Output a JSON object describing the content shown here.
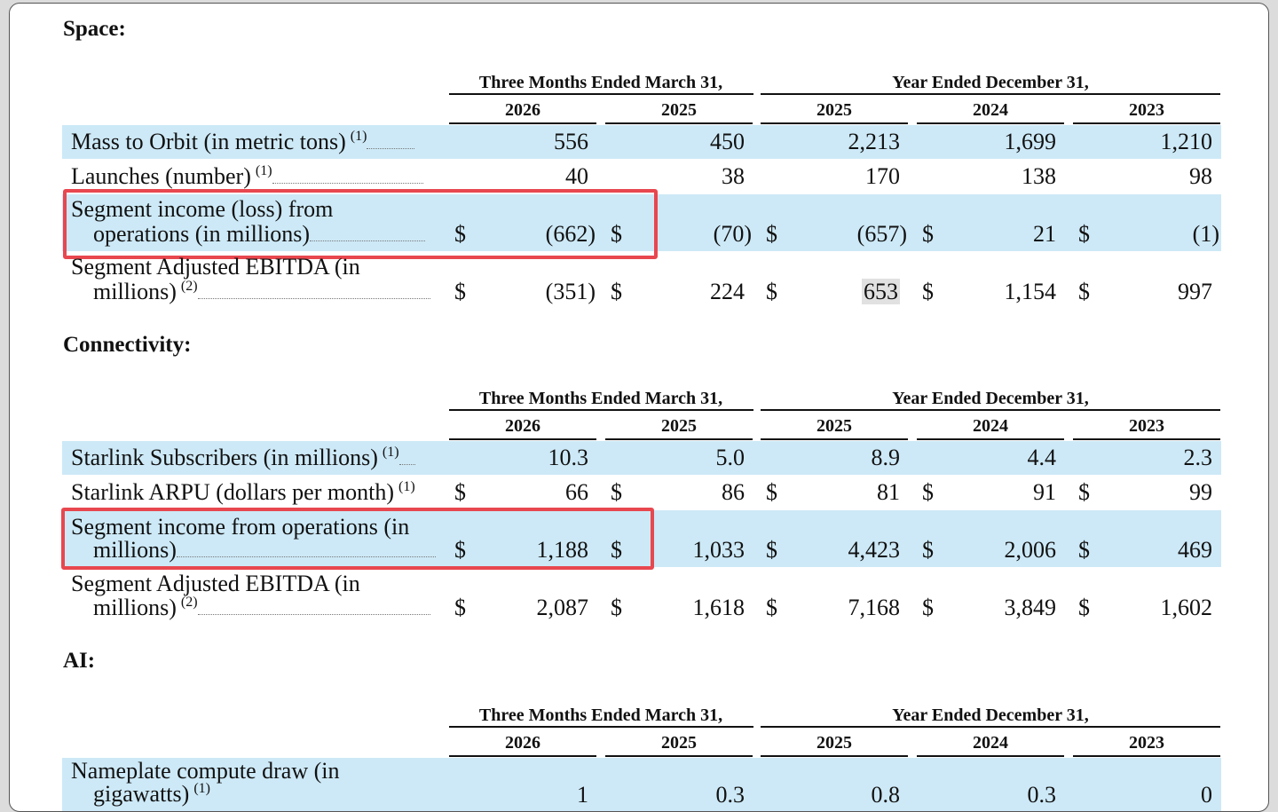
{
  "colors": {
    "row_highlight": "#cde9f7",
    "box_highlight": "#e8474f",
    "cell_highlight": "#e1e1e1"
  },
  "headers": {
    "group_quarter": "Three Months Ended March 31,",
    "group_year": "Year Ended December 31,",
    "years": [
      "2026",
      "2025",
      "2025",
      "2024",
      "2023"
    ]
  },
  "sections": [
    {
      "title": "Space:",
      "rows": [
        {
          "label1": "Mass to Orbit (in metric tons)",
          "label2": "",
          "fn": "(1)",
          "dollar": false,
          "values": [
            "556",
            "450",
            "2,213",
            "1,699",
            "1,210"
          ]
        },
        {
          "label1": "Launches (number)",
          "label2": "",
          "fn": "(1)",
          "dollar": false,
          "values": [
            "40",
            "38",
            "170",
            "138",
            "98"
          ]
        },
        {
          "label1": "Segment income (loss) from",
          "label2": "operations (in millions)",
          "fn": "",
          "dollar": true,
          "values": [
            "(662)",
            "(70)",
            "(657)",
            "21",
            "(1)"
          ]
        },
        {
          "label1": "Segment Adjusted EBITDA (in",
          "label2": "millions)",
          "fn": "(2)",
          "dollar": true,
          "values": [
            "(351)",
            "224",
            "653",
            "1,154",
            "997"
          ]
        }
      ]
    },
    {
      "title": "Connectivity:",
      "rows": [
        {
          "label1": "Starlink Subscribers (in millions)",
          "label2": "",
          "fn": "(1)",
          "dollar": false,
          "values": [
            "10.3",
            "5.0",
            "8.9",
            "4.4",
            "2.3"
          ]
        },
        {
          "label1": "Starlink ARPU (dollars per month)",
          "label2": "",
          "fn": "(1)",
          "dollar": true,
          "values": [
            "66",
            "86",
            "81",
            "91",
            "99"
          ]
        },
        {
          "label1": "Segment income from operations (in",
          "label2": "millions)",
          "fn": "",
          "dollar": true,
          "values": [
            "1,188",
            "1,033",
            "4,423",
            "2,006",
            "469"
          ]
        },
        {
          "label1": "Segment Adjusted EBITDA (in",
          "label2": "millions)",
          "fn": "(2)",
          "dollar": true,
          "values": [
            "2,087",
            "1,618",
            "7,168",
            "3,849",
            "1,602"
          ]
        }
      ]
    },
    {
      "title": "AI:",
      "rows": [
        {
          "label1": "Nameplate compute draw (in",
          "label2": "gigawatts)",
          "fn": "(1)",
          "dollar": false,
          "values": [
            "1",
            "0.3",
            "0.8",
            "0.3",
            "0"
          ]
        }
      ]
    }
  ],
  "currency_symbol": "$"
}
